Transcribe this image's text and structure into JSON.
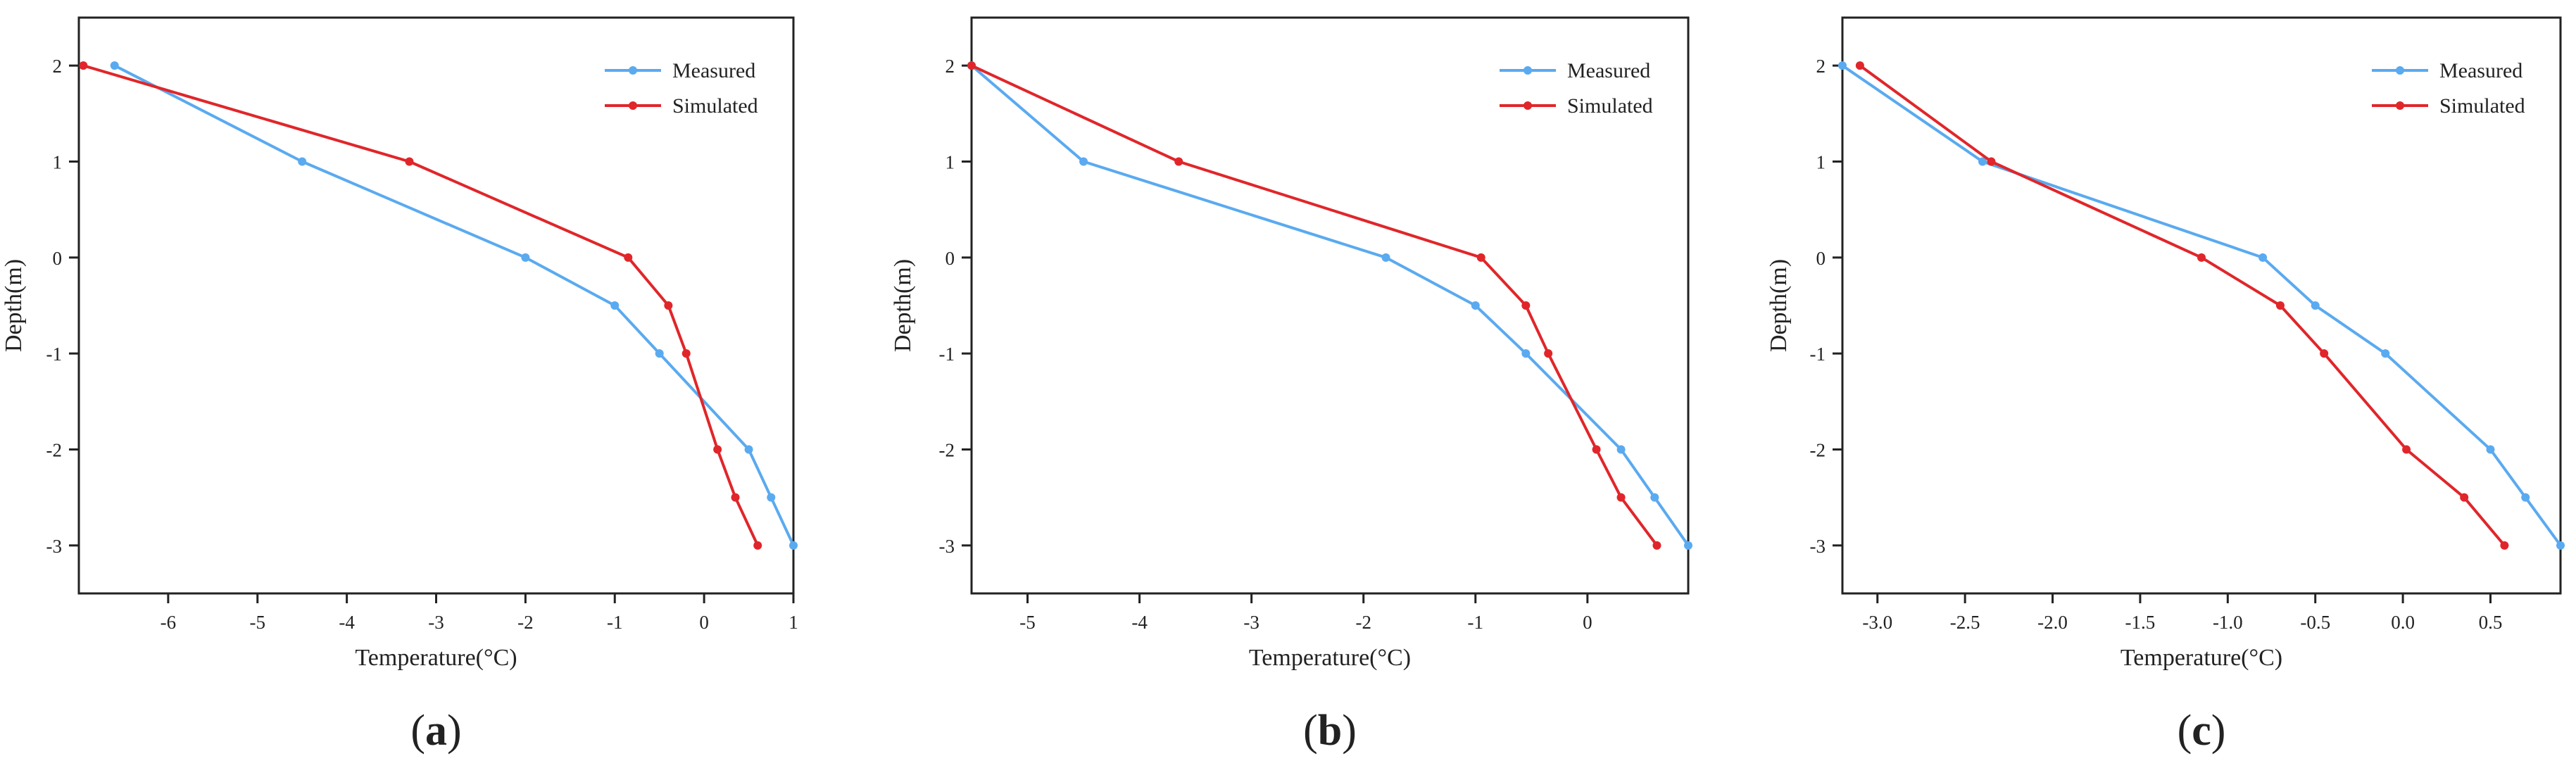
{
  "chart_data": [
    {
      "type": "line",
      "panel_label": "(a)",
      "label_parts": [
        "(",
        "a",
        ")"
      ],
      "xlabel": "Temperature(°C)",
      "ylabel": "Depth(m)",
      "xlim": [
        -7.0,
        1.0
      ],
      "ylim": [
        -3.5,
        2.5
      ],
      "xticks": [
        -6,
        -5,
        -4,
        -3,
        -2,
        -1,
        0,
        1
      ],
      "xtick_labels": [
        "-6",
        "-5",
        "-4",
        "-3",
        "-2",
        "-1",
        "0",
        "1"
      ],
      "yticks": [
        2,
        1,
        0,
        -1,
        -2,
        -3
      ],
      "ytick_labels": [
        "2",
        "1",
        "0",
        "-1",
        "-2",
        "-3"
      ],
      "legend_position": "top-right",
      "series": [
        {
          "name": "Measured",
          "color": "#5aaaf0",
          "points": [
            [
              -6.6,
              2
            ],
            [
              -4.5,
              1
            ],
            [
              -2.0,
              0
            ],
            [
              -1.0,
              -0.5
            ],
            [
              -0.5,
              -1
            ],
            [
              0.5,
              -2
            ],
            [
              0.75,
              -2.5
            ],
            [
              1.0,
              -3
            ]
          ]
        },
        {
          "name": "Simulated",
          "color": "#e0262a",
          "points": [
            [
              -6.95,
              2
            ],
            [
              -3.3,
              1
            ],
            [
              -0.85,
              0
            ],
            [
              -0.4,
              -0.5
            ],
            [
              -0.2,
              -1
            ],
            [
              0.15,
              -2
            ],
            [
              0.35,
              -2.5
            ],
            [
              0.6,
              -3
            ]
          ]
        }
      ]
    },
    {
      "type": "line",
      "panel_label": "(b)",
      "label_parts": [
        "(",
        "b",
        ")"
      ],
      "xlabel": "Temperature(°C)",
      "ylabel": "Depth(m)",
      "xlim": [
        -5.5,
        0.9
      ],
      "ylim": [
        -3.5,
        2.5
      ],
      "xticks": [
        -5,
        -4,
        -3,
        -2,
        -1,
        0
      ],
      "xtick_labels": [
        "-5",
        "-4",
        "-3",
        "-2",
        "-1",
        "0"
      ],
      "yticks": [
        2,
        1,
        0,
        -1,
        -2,
        -3
      ],
      "ytick_labels": [
        "2",
        "1",
        "0",
        "-1",
        "-2",
        "-3"
      ],
      "legend_position": "top-right",
      "series": [
        {
          "name": "Measured",
          "color": "#5aaaf0",
          "points": [
            [
              -5.5,
              2
            ],
            [
              -4.5,
              1
            ],
            [
              -1.8,
              0
            ],
            [
              -1.0,
              -0.5
            ],
            [
              -0.55,
              -1
            ],
            [
              0.3,
              -2
            ],
            [
              0.6,
              -2.5
            ],
            [
              0.9,
              -3
            ]
          ]
        },
        {
          "name": "Simulated",
          "color": "#e0262a",
          "points": [
            [
              -5.5,
              2
            ],
            [
              -3.65,
              1
            ],
            [
              -0.95,
              0
            ],
            [
              -0.55,
              -0.5
            ],
            [
              -0.35,
              -1
            ],
            [
              0.08,
              -2
            ],
            [
              0.3,
              -2.5
            ],
            [
              0.62,
              -3
            ]
          ]
        }
      ]
    },
    {
      "type": "line",
      "panel_label": "(c)",
      "label_parts": [
        "(",
        "c",
        ")"
      ],
      "xlabel": "Temperature(°C)",
      "ylabel": "Depth(m)",
      "xlim": [
        -3.2,
        0.9
      ],
      "ylim": [
        -3.5,
        2.5
      ],
      "xticks": [
        -3.0,
        -2.5,
        -2.0,
        -1.5,
        -1.0,
        -0.5,
        0.0,
        0.5
      ],
      "xtick_labels": [
        "-3.0",
        "-2.5",
        "-2.0",
        "-1.5",
        "-1.0",
        "-0.5",
        "0.0",
        "0.5"
      ],
      "yticks": [
        2,
        1,
        0,
        -1,
        -2,
        -3
      ],
      "ytick_labels": [
        "2",
        "1",
        "0",
        "-1",
        "-2",
        "-3"
      ],
      "legend_position": "top-right",
      "series": [
        {
          "name": "Measured",
          "color": "#5aaaf0",
          "points": [
            [
              -3.2,
              2
            ],
            [
              -2.4,
              1
            ],
            [
              -0.8,
              0
            ],
            [
              -0.5,
              -0.5
            ],
            [
              -0.1,
              -1
            ],
            [
              0.5,
              -2
            ],
            [
              0.7,
              -2.5
            ],
            [
              0.9,
              -3
            ]
          ]
        },
        {
          "name": "Simulated",
          "color": "#e0262a",
          "points": [
            [
              -3.1,
              2
            ],
            [
              -2.35,
              1
            ],
            [
              -1.15,
              0
            ],
            [
              -0.7,
              -0.5
            ],
            [
              -0.45,
              -1
            ],
            [
              0.02,
              -2
            ],
            [
              0.35,
              -2.5
            ],
            [
              0.58,
              -3
            ]
          ]
        }
      ]
    }
  ]
}
